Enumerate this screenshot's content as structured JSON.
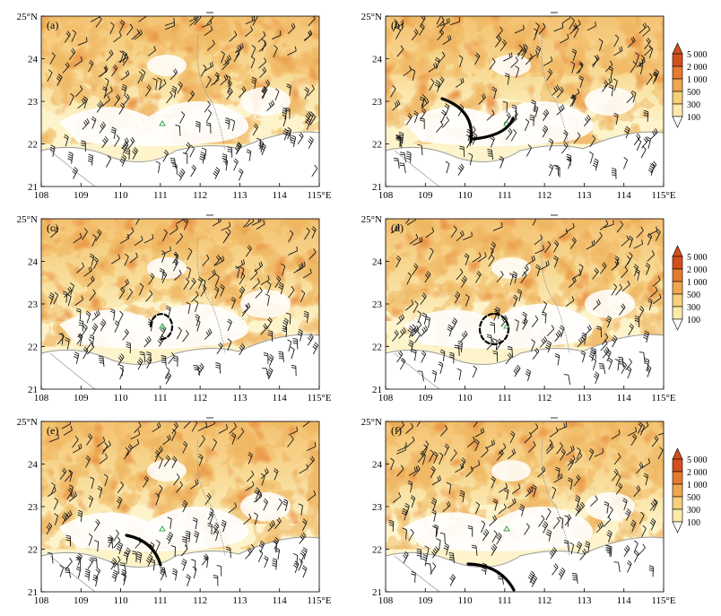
{
  "figure": {
    "description_free": true,
    "terrain_colors": [
      "#fffde0",
      "#fbeaa8",
      "#f6cf7a",
      "#f0a64e",
      "#e87a2e",
      "#d3501e"
    ],
    "panels": [
      {
        "label": "(a)",
        "arcs": []
      },
      {
        "label": "(b)",
        "arcs": [
          "solid"
        ]
      },
      {
        "label": "(c)",
        "arcs": [
          "dashed"
        ]
      },
      {
        "label": "(d)",
        "arcs": [
          "dashed"
        ]
      },
      {
        "label": "(e)",
        "arcs": [
          "solid"
        ]
      },
      {
        "label": "(f)",
        "arcs": [
          "solid"
        ]
      }
    ],
    "axes": {
      "x_ticks": [
        "108",
        "109",
        "110",
        "111",
        "112",
        "113",
        "114",
        "115°E"
      ],
      "y_ticks": [
        "21",
        "22",
        "23",
        "24",
        "25°N"
      ]
    },
    "colorbar": {
      "labels": [
        "5 000",
        "2 000",
        "1 000",
        "500",
        "300",
        "100"
      ]
    }
  }
}
